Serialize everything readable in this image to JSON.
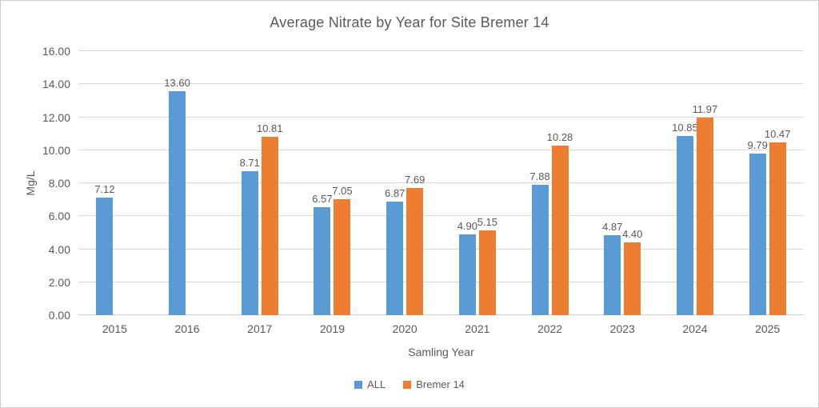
{
  "chart_data": {
    "type": "bar",
    "title": "Average Nitrate by Year for Site Bremer 14",
    "xlabel": "Samling Year",
    "ylabel": "Mg/L",
    "categories": [
      "2015",
      "2016",
      "2017",
      "2019",
      "2020",
      "2021",
      "2022",
      "2023",
      "2024",
      "2025"
    ],
    "series": [
      {
        "name": "ALL",
        "color": "#5B9BD5",
        "values": [
          7.12,
          13.6,
          8.71,
          6.57,
          6.87,
          4.9,
          7.88,
          4.87,
          10.85,
          9.79
        ]
      },
      {
        "name": "Bremer 14",
        "color": "#ED7D31",
        "values": [
          null,
          null,
          10.81,
          7.05,
          7.69,
          5.15,
          10.28,
          4.4,
          11.97,
          10.47
        ]
      }
    ],
    "ylim": [
      0,
      16
    ],
    "ytick_step": 2,
    "label_decimals": 2,
    "grid": true,
    "data_labels": true,
    "legend_position": "bottom"
  },
  "colors": {
    "text": "#595959",
    "gridline": "#D9D9D9",
    "series_all": "#5B9BD5",
    "series_bremer": "#ED7D31"
  }
}
